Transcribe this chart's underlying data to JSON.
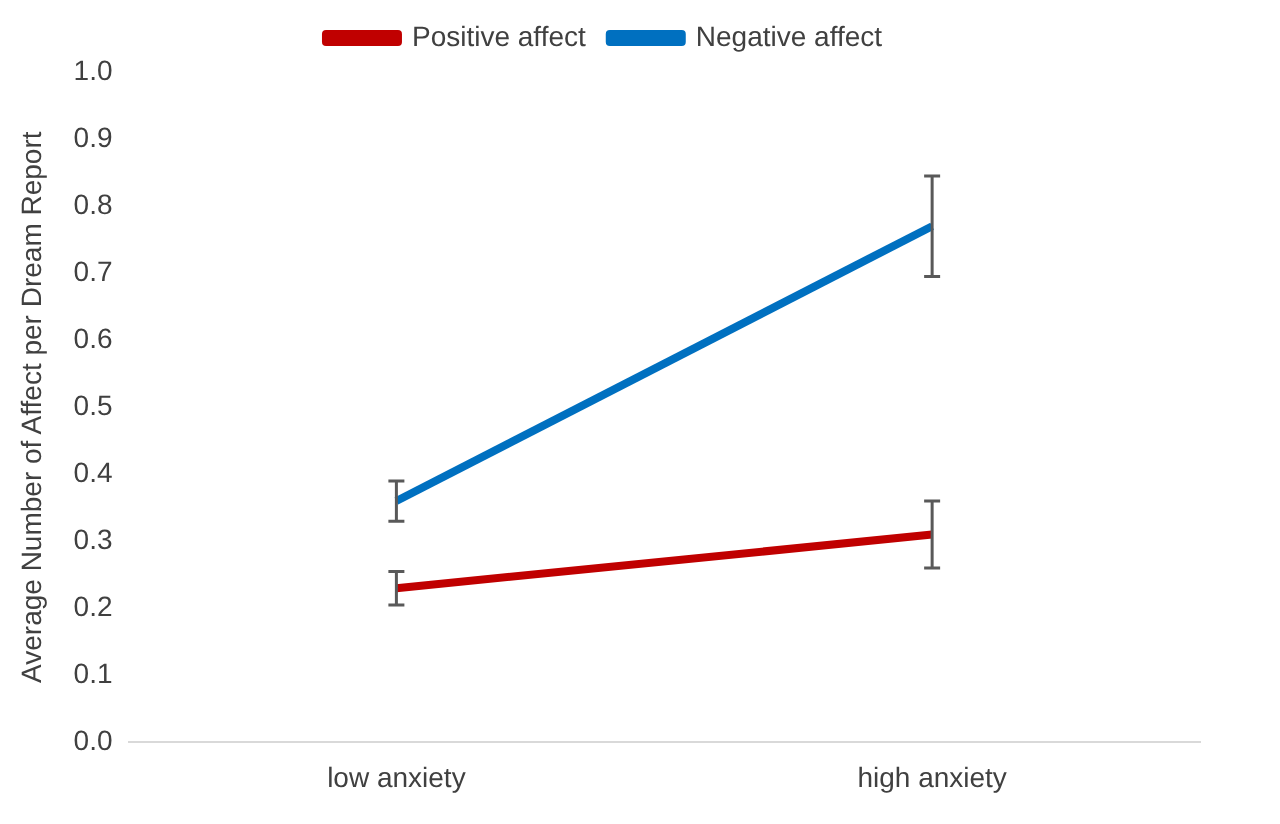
{
  "chart_data": {
    "type": "line",
    "ylabel": "Average Number of Affect per Dream Report",
    "categories": [
      "low anxiety",
      "high anxiety"
    ],
    "series": [
      {
        "name": "Positive affect",
        "color": "#c00000",
        "values": [
          0.23,
          0.31
        ],
        "errors": [
          0.025,
          0.05
        ]
      },
      {
        "name": "Negative affect",
        "color": "#0070c0",
        "values": [
          0.36,
          0.77
        ],
        "errors": [
          0.03,
          0.075
        ]
      }
    ],
    "ylim": [
      0,
      1
    ],
    "yticks": [
      {
        "value": 0,
        "label": "0.0"
      },
      0.1,
      0.2,
      0.3,
      0.4,
      0.5,
      0.6,
      0.7,
      0.8,
      0.9,
      {
        "value": 1,
        "label": "1.0"
      }
    ],
    "grid": false,
    "legend": "top",
    "marker": "none"
  }
}
